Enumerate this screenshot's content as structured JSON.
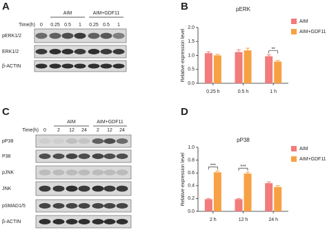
{
  "blots": [
    {
      "label": "A",
      "groups": [
        "AIM",
        "AIM+GDF11"
      ],
      "time_label": "Time(h)",
      "lanes": [
        "0",
        "0.25",
        "0.5",
        "1",
        "0.25",
        "0.5",
        "1"
      ],
      "rows": [
        "pERK1/2",
        "ERK1/2",
        "β-ACTIN"
      ]
    },
    {
      "label": "C",
      "groups": [
        "AIM",
        "AIM+GDF11"
      ],
      "time_label": "Time(h)",
      "lanes": [
        "0",
        "2",
        "12",
        "24",
        "2",
        "12",
        "24"
      ],
      "rows": [
        "pP38",
        "P38",
        "pJNK",
        "JNK",
        "pSMAD1/5",
        "β-ACTIN"
      ]
    }
  ],
  "chart_data": [
    {
      "type": "bar",
      "label": "B",
      "title": "pERK",
      "y_label": "Relative expression level",
      "categories": [
        "0.25 h",
        "0.5 h",
        "1 h"
      ],
      "series": [
        {
          "name": "AIM",
          "color": "#f27b7b",
          "values": [
            1.08,
            1.12,
            0.97
          ],
          "errors": [
            0.05,
            0.08,
            0.05
          ]
        },
        {
          "name": "AIM+GDF11",
          "color": "#f7a144",
          "values": [
            1.0,
            1.18,
            0.78
          ],
          "errors": [
            0.04,
            0.08,
            0.04
          ]
        }
      ],
      "significance": [
        null,
        null,
        "**"
      ],
      "ylim": [
        0,
        2
      ],
      "yticks": [
        {
          "value": 0,
          "label": "0.0"
        },
        {
          "value": 0.5,
          "label": "0.5"
        },
        {
          "value": 1,
          "label": "1.0"
        },
        {
          "value": 1.5,
          "label": "1.5"
        },
        {
          "value": 2,
          "label": "2.0"
        }
      ]
    },
    {
      "type": "bar",
      "label": "D",
      "title": "pP38",
      "y_label": "Relative expression level",
      "categories": [
        "2 h",
        "12 h",
        "24 h"
      ],
      "series": [
        {
          "name": "AIM",
          "color": "#f27b7b",
          "values": [
            0.19,
            0.19,
            0.44
          ],
          "errors": [
            0.01,
            0.01,
            0.02
          ]
        },
        {
          "name": "AIM+GDF11",
          "color": "#f7a144",
          "values": [
            0.61,
            0.59,
            0.38
          ],
          "errors": [
            0.02,
            0.02,
            0.02
          ]
        }
      ],
      "significance": [
        "***",
        "***",
        null
      ],
      "ylim": [
        0,
        1
      ],
      "yticks": [
        {
          "value": 0,
          "label": "0.0"
        },
        {
          "value": 0.2,
          "label": "0.2"
        },
        {
          "value": 0.4,
          "label": "0.4"
        },
        {
          "value": 0.6,
          "label": "0.6"
        },
        {
          "value": 0.8,
          "label": "0.8"
        },
        {
          "value": 1,
          "label": "1.0"
        }
      ]
    }
  ]
}
